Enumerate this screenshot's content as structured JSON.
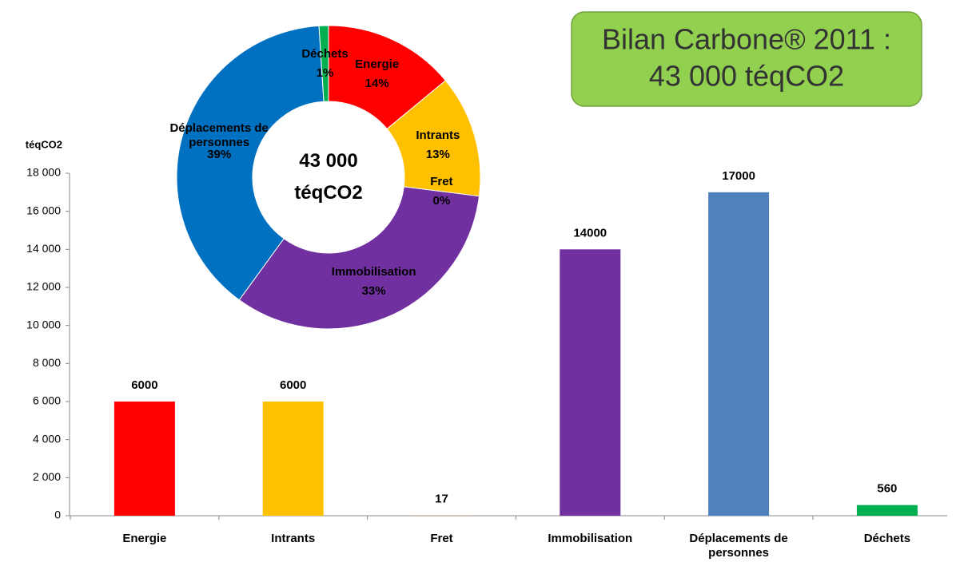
{
  "title_box": {
    "lines": [
      "Bilan Carbone® 2011 :",
      "43 000 téqCO2"
    ]
  },
  "chart_data": [
    {
      "type": "bar",
      "y_label": "téqCO2",
      "categories": [
        "Energie",
        "Intrants",
        "Fret",
        "Immobilisation",
        "Déplacements de personnes",
        "Déchets"
      ],
      "values": [
        6000,
        6000,
        17,
        14000,
        17000,
        560
      ],
      "colors": [
        "#ff0000",
        "#ffc000",
        "#c0804d",
        "#7030a0",
        "#4f81bd",
        "#00b050"
      ],
      "ylim": [
        0,
        18000
      ],
      "yticks": [
        0,
        {
          "value": 2000,
          "label": "2 000"
        },
        {
          "value": 4000,
          "label": "4 000"
        },
        {
          "value": 6000,
          "label": "6 000"
        },
        {
          "value": 8000,
          "label": "8 000"
        },
        {
          "value": 10000,
          "label": "10 000"
        },
        {
          "value": 12000,
          "label": "12 000"
        },
        {
          "value": 14000,
          "label": "14 000"
        },
        {
          "value": 16000,
          "label": "16 000"
        },
        {
          "value": 18000,
          "label": "18 000"
        }
      ]
    },
    {
      "type": "donut",
      "center_text": "43 000 téqCO2",
      "categories": [
        "Energie",
        "Intrants",
        "Fret",
        "Immobilisation",
        "Déplacements de personnes",
        "Déchets"
      ],
      "values": [
        14,
        13,
        0,
        33,
        39,
        1
      ],
      "value_labels": [
        "14%",
        "13%",
        "0%",
        "33%",
        "39%",
        "1%"
      ],
      "colors": [
        "#ff0000",
        "#ffc000",
        "#c0804d",
        "#7030a0",
        "#0070c0",
        "#00b050"
      ]
    }
  ]
}
